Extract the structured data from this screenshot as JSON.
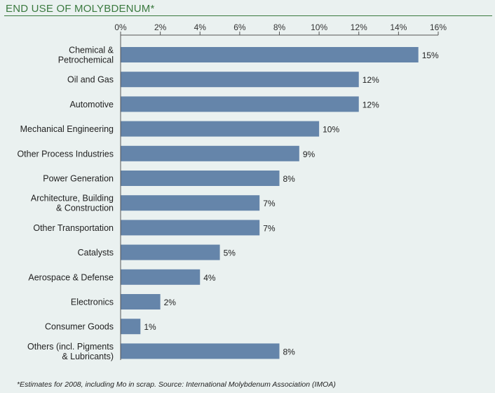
{
  "title": "END USE OF MOLYBDENUM*",
  "footnote": "*Estimates for 2008, including Mo in scrap. Source: International Molybdenum Association (IMOA)",
  "colors": {
    "bar": "#6585aa",
    "title": "#3b7a3f",
    "background": "#eaf1f0"
  },
  "chart_data": {
    "type": "bar",
    "orientation": "horizontal",
    "categories": [
      "Chemical &\nPetrochemical",
      "Oil and Gas",
      "Automotive",
      "Mechanical Engineering",
      "Other Process Industries",
      "Power Generation",
      "Architecture, Building\n& Construction",
      "Other Transportation",
      "Catalysts",
      "Aerospace & Defense",
      "Electronics",
      "Consumer Goods",
      "Others (incl. Pigments\n& Lubricants)"
    ],
    "values": [
      15,
      12,
      12,
      10,
      9,
      8,
      7,
      7,
      5,
      4,
      2,
      1,
      8
    ],
    "value_labels": [
      "15%",
      "12%",
      "12%",
      "10%",
      "9%",
      "8%",
      "7%",
      "7%",
      "5%",
      "4%",
      "2%",
      "1%",
      "8%"
    ],
    "xlim": [
      0,
      16
    ],
    "xticks": [
      0,
      2,
      4,
      6,
      8,
      10,
      12,
      14,
      16
    ],
    "xtick_labels": [
      "0%",
      "2%",
      "4%",
      "6%",
      "8%",
      "10%",
      "12%",
      "14%",
      "16%"
    ],
    "axis_position": "top",
    "grid": false
  }
}
